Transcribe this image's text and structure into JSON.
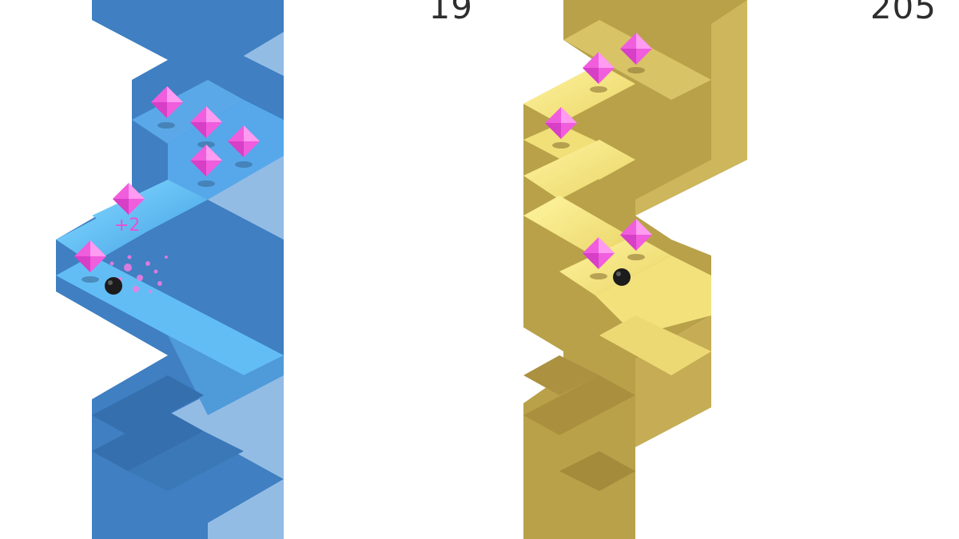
{
  "game": {
    "panels": [
      {
        "id": "left",
        "score": "19",
        "theme": "blue",
        "colors": {
          "top": "#56b6ee",
          "left": "#3b77b7",
          "right": "#4a8fd3",
          "ball": "#1a1a1a",
          "gem": "#ee55dc"
        },
        "bonus_text": "+2"
      },
      {
        "id": "right",
        "score": "205",
        "theme": "gold",
        "colors": {
          "top": "#f4e57a",
          "left": "#b79e48",
          "right": "#cdb65b",
          "ball": "#1a1a1a",
          "gem": "#ee55dc"
        }
      }
    ],
    "icons": [
      "ball-icon",
      "gem-icon"
    ]
  }
}
